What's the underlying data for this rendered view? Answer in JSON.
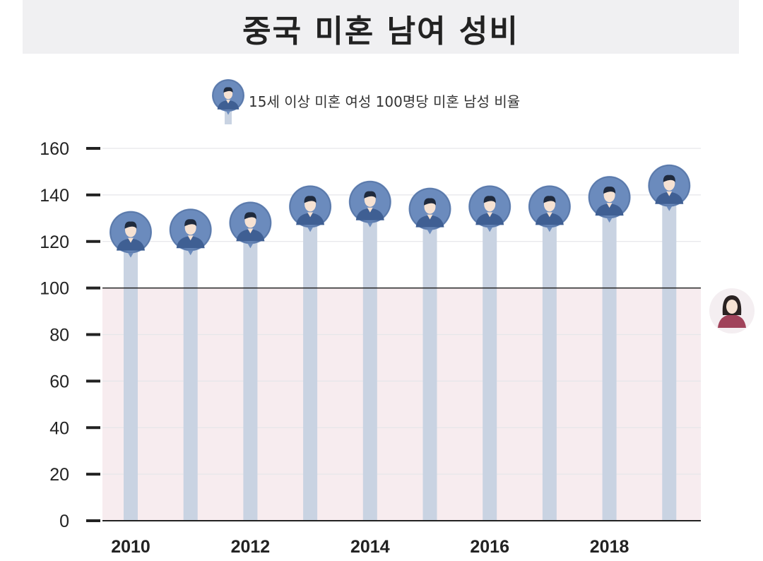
{
  "title": "중국 미혼 남여 성비",
  "legend": {
    "label": "15세 이상 미혼 여성 100명당 미혼 남성 비율",
    "icon": "male-avatar-icon"
  },
  "chart_data": {
    "type": "bar",
    "categories": [
      "2010",
      "2011",
      "2012",
      "2013",
      "2014",
      "2015",
      "2016",
      "2017",
      "2018",
      "2019"
    ],
    "x_tick_labels": [
      "2010",
      "2012",
      "2014",
      "2016",
      "2018"
    ],
    "series": [
      {
        "name": "15세 이상 미혼 여성 100명당 미혼 남성 비율",
        "values": [
          124,
          125,
          128,
          135,
          137,
          134,
          135,
          135,
          139,
          144
        ]
      }
    ],
    "reference_line": 100,
    "y_ticks": [
      0,
      20,
      40,
      60,
      80,
      100,
      120,
      140,
      160
    ],
    "ylim": [
      0,
      160
    ],
    "grid": true,
    "legend_position": "top-center",
    "colors": {
      "stem": "#c9d3e2",
      "avatar_bg": "#6b8bbd",
      "below_ref_fill": "#f7ecef",
      "ref_line": "#222222"
    },
    "reference_icon": "female-avatar-icon"
  }
}
